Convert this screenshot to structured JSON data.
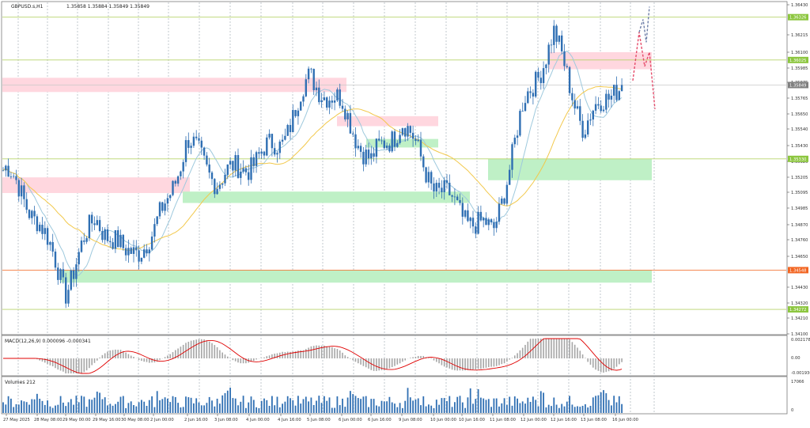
{
  "header": {
    "symbol": "GBPUSD.s,H1",
    "ohlc": "1.35858 1.35884 1.35849 1.35849"
  },
  "colors": {
    "candle": "#2f6fb3",
    "ma_fast": "#9ec9dd",
    "ma_slow": "#f2c84b",
    "support_zone": "#bff0c6",
    "resistance_zone": "#ffd7df",
    "hline_green": "#b7d36b",
    "hline_orange": "#f57a3c",
    "price_label_green": "#8cc63f",
    "price_label_orange": "#f26522",
    "price_label_grey": "#7f7f7f",
    "macd_hist": "#a6a6a6",
    "macd_signal": "#e00000",
    "volume": "#2f6fb3",
    "forecast": "#e54b6a",
    "forecast_alt": "#6d7ea8",
    "grid": "#9aa3ad"
  },
  "price_axis": {
    "ticks": [
      "1.36430",
      "1.36215",
      "1.36100",
      "1.35985",
      "1.35875",
      "1.35765",
      "1.35650",
      "1.35540",
      "1.35430",
      "1.35320",
      "1.35205",
      "1.35095",
      "1.34985",
      "1.34870",
      "1.34760",
      "1.34650",
      "1.34430",
      "1.34320",
      "1.34210",
      "1.34100"
    ],
    "labels": [
      {
        "text": "1.36326",
        "price": 1.36326,
        "color": "green"
      },
      {
        "text": "1.36025",
        "price": 1.36025,
        "color": "green"
      },
      {
        "text": "1.35849",
        "price": 1.35849,
        "color": "grey"
      },
      {
        "text": "1.35330",
        "price": 1.3533,
        "color": "green"
      },
      {
        "text": "1.34548",
        "price": 1.34548,
        "color": "orange"
      },
      {
        "text": "1.34272",
        "price": 1.34272,
        "color": "green"
      }
    ]
  },
  "time_axis": {
    "labels": [
      "27 May 2025",
      "28 May 08:00",
      "29 May 00:00",
      "29 May 16:00",
      "30 May 08:00",
      "2 Jun 00:00",
      "2 Jun 16:00",
      "3 Jun 08:00",
      "4 Jun 00:00",
      "4 Jun 16:00",
      "5 Jun 08:00",
      "6 Jun 00:00",
      "6 Jun 16:00",
      "9 Jun 08:00",
      "10 Jun 00:00",
      "10 Jun 16:00",
      "11 Jun 08:00",
      "12 Jun 00:00",
      "12 Jun 16:00",
      "13 Jun 08:00",
      "16 Jun 00:00"
    ]
  },
  "macd": {
    "label": "MACD(12,26,9) 0.000096 -0.000341",
    "ticks": [
      "0.002178",
      "0.00",
      "-0.001936"
    ]
  },
  "volumes": {
    "label": "Volumes 212",
    "ticks": [
      "17066",
      "0"
    ]
  },
  "chart_data": {
    "type": "candlestick",
    "instrument": "GBPUSD.s",
    "timeframe": "H1",
    "last_ohlc": {
      "open": 1.35858,
      "high": 1.35884,
      "low": 1.35849,
      "close": 1.35849
    },
    "ylim": [
      1.341,
      1.3643
    ],
    "horizontal_levels": [
      1.36326,
      1.36025,
      1.3533,
      1.34548,
      1.34272
    ],
    "current_price": 1.35849,
    "approx_close_path": [
      {
        "x": "27 May 2025",
        "y": 1.3525
      },
      {
        "x": "28 May 08:00",
        "y": 1.3491
      },
      {
        "x": "29 May 00:00",
        "y": 1.3442
      },
      {
        "x": "29 May 16:00",
        "y": 1.3493
      },
      {
        "x": "30 May 08:00",
        "y": 1.3465
      },
      {
        "x": "2 Jun 00:00",
        "y": 1.3478
      },
      {
        "x": "2 Jun 16:00",
        "y": 1.3545
      },
      {
        "x": "3 Jun 08:00",
        "y": 1.3518
      },
      {
        "x": "4 Jun 00:00",
        "y": 1.353
      },
      {
        "x": "4 Jun 16:00",
        "y": 1.3545
      },
      {
        "x": "5 Jun 08:00",
        "y": 1.359
      },
      {
        "x": "6 Jun 00:00",
        "y": 1.357
      },
      {
        "x": "6 Jun 16:00",
        "y": 1.353
      },
      {
        "x": "9 Jun 08:00",
        "y": 1.356
      },
      {
        "x": "10 Jun 00:00",
        "y": 1.3515
      },
      {
        "x": "10 Jun 16:00",
        "y": 1.3495
      },
      {
        "x": "11 Jun 08:00",
        "y": 1.348
      },
      {
        "x": "12 Jun 00:00",
        "y": 1.357
      },
      {
        "x": "12 Jun 16:00",
        "y": 1.362
      },
      {
        "x": "13 Jun 08:00",
        "y": 1.3555
      },
      {
        "x": "16 Jun 00:00",
        "y": 1.3585
      }
    ],
    "zones": [
      {
        "type": "resistance",
        "from": 1.359,
        "to": 1.358,
        "x_start": "27 May 2025",
        "x_end": "5 Jun 08:00"
      },
      {
        "type": "resistance",
        "from": 1.352,
        "to": 1.3509,
        "x_start": "27 May 2025",
        "x_end": "2 Jun 00:00"
      },
      {
        "type": "resistance",
        "from": 1.3563,
        "to": 1.3556,
        "x_start": "6 Jun 00:00",
        "x_end": "9 Jun 08:00"
      },
      {
        "type": "resistance",
        "from": 1.3608,
        "to": 1.3596,
        "x_start": "12 Jun 16:00",
        "x_end": "16 Jun 00:00"
      },
      {
        "type": "support",
        "from": 1.351,
        "to": 1.3502,
        "x_start": "2 Jun 16:00",
        "x_end": "10 Jun 00:00"
      },
      {
        "type": "support",
        "from": 1.3547,
        "to": 1.3541,
        "x_start": "6 Jun 16:00",
        "x_end": "9 Jun 08:00"
      },
      {
        "type": "support",
        "from": 1.3533,
        "to": 1.3518,
        "x_start": "11 Jun 08:00",
        "x_end": "16 Jun 00:00"
      },
      {
        "type": "support",
        "from": 1.3455,
        "to": 1.3446,
        "x_start": "29 May 00:00",
        "x_end": "16 Jun 00:00"
      }
    ]
  }
}
